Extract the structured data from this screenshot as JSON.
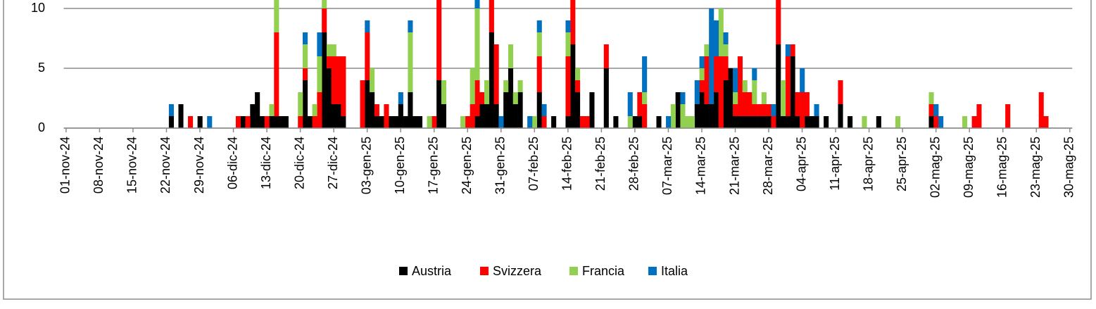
{
  "chart_data": {
    "type": "stacked_bar",
    "categories": [
      "01-nov-24",
      null,
      null,
      null,
      null,
      null,
      null,
      "08-nov-24",
      null,
      null,
      null,
      null,
      null,
      null,
      "15-nov-24",
      null,
      null,
      null,
      null,
      null,
      null,
      "22-nov-24",
      null,
      null,
      null,
      null,
      null,
      null,
      "29-nov-24",
      null,
      null,
      null,
      null,
      null,
      null,
      "06-dic-24",
      null,
      null,
      null,
      null,
      null,
      null,
      "13-dic-24",
      null,
      null,
      null,
      null,
      null,
      null,
      "20-dic-24",
      null,
      null,
      null,
      null,
      null,
      null,
      "27-dic-24",
      null,
      null,
      null,
      null,
      null,
      null,
      "03-gen-25",
      null,
      null,
      null,
      null,
      null,
      null,
      "10-gen-25",
      null,
      null,
      null,
      null,
      null,
      null,
      "17-gen-25",
      null,
      null,
      null,
      null,
      null,
      null,
      "24-gen-25",
      null,
      null,
      null,
      null,
      null,
      null,
      "31-gen-25",
      null,
      null,
      null,
      null,
      null,
      null,
      "07-feb-25",
      null,
      null,
      null,
      null,
      null,
      null,
      "14-feb-25",
      null,
      null,
      null,
      null,
      null,
      null,
      "21-feb-25",
      null,
      null,
      null,
      null,
      null,
      null,
      "28-feb-25",
      null,
      null,
      null,
      null,
      null,
      null,
      "07-mar-25",
      null,
      null,
      null,
      null,
      null,
      null,
      "14-mar-25",
      null,
      null,
      null,
      null,
      null,
      null,
      "21-mar-25",
      null,
      null,
      null,
      null,
      null,
      null,
      "28-mar-25",
      null,
      null,
      null,
      null,
      null,
      null,
      "04-apr-25",
      null,
      null,
      null,
      null,
      null,
      null,
      "11-apr-25",
      null,
      null,
      null,
      null,
      null,
      null,
      "18-apr-25",
      null,
      null,
      null,
      null,
      null,
      null,
      "25-apr-25",
      null,
      null,
      null,
      null,
      null,
      null,
      "02-mag-25",
      null,
      null,
      null,
      null,
      null,
      null,
      "09-mag-25",
      null,
      null,
      null,
      null,
      null,
      null,
      "16-mag-25",
      null,
      null,
      null,
      null,
      null,
      null,
      "23-mag-25",
      null,
      null,
      null,
      null,
      null,
      null,
      "30-mag-25"
    ],
    "series": [
      {
        "name": "Austria",
        "color": "#000000",
        "values": [
          0,
          0,
          0,
          0,
          0,
          0,
          0,
          0,
          0,
          0,
          0,
          0,
          0,
          0,
          0,
          0,
          0,
          0,
          0,
          0,
          0,
          0,
          1,
          0,
          2,
          0,
          0,
          0,
          1,
          0,
          0,
          0,
          0,
          0,
          0,
          0,
          0,
          1,
          0,
          2,
          3,
          1,
          0,
          1,
          1,
          1,
          1,
          0,
          0,
          0,
          4,
          1,
          0,
          0,
          8,
          5,
          2,
          2,
          1,
          0,
          0,
          0,
          0,
          4,
          3,
          1,
          1,
          0,
          1,
          1,
          2,
          1,
          3,
          1,
          1,
          0,
          0,
          0,
          4,
          2,
          0,
          0,
          0,
          0,
          0,
          0,
          1,
          2,
          2,
          8,
          2,
          0,
          3,
          5,
          2,
          3,
          0,
          0,
          0,
          3,
          0,
          0,
          1,
          0,
          0,
          1,
          7,
          3,
          0,
          0,
          3,
          0,
          0,
          5,
          0,
          1,
          0,
          0,
          0,
          1,
          1,
          0,
          0,
          0,
          1,
          0,
          0,
          0,
          3,
          0,
          0,
          0,
          2,
          3,
          2,
          2,
          3,
          0,
          4,
          5,
          1,
          1,
          1,
          1,
          1,
          1,
          1,
          1,
          0,
          7,
          1,
          1,
          6,
          1,
          0,
          1,
          1,
          1,
          0,
          1,
          0,
          0,
          2,
          0,
          1,
          0,
          0,
          0,
          0,
          0,
          1,
          0,
          0,
          0,
          0,
          0,
          0,
          0,
          0,
          0,
          0,
          1,
          0,
          0,
          0,
          0,
          0,
          0,
          0,
          0,
          0,
          0,
          0,
          0,
          0,
          0,
          0,
          0,
          0,
          0,
          0,
          0,
          0,
          0,
          0,
          0,
          0,
          0,
          0,
          0,
          0
        ]
      },
      {
        "name": "Svizzera",
        "color": "#ff0000",
        "values": [
          0,
          0,
          0,
          0,
          0,
          0,
          0,
          0,
          0,
          0,
          0,
          0,
          0,
          0,
          0,
          0,
          0,
          0,
          0,
          0,
          0,
          0,
          0,
          0,
          0,
          0,
          1,
          0,
          0,
          0,
          0,
          0,
          0,
          0,
          0,
          0,
          1,
          0,
          1,
          0,
          0,
          0,
          1,
          0,
          7,
          0,
          0,
          0,
          0,
          1,
          1,
          0,
          1,
          3,
          2,
          1,
          4,
          4,
          5,
          0,
          0,
          0,
          4,
          4,
          0,
          1,
          0,
          2,
          0,
          0,
          0,
          0,
          0,
          0,
          0,
          0,
          0,
          1,
          8,
          0,
          0,
          0,
          0,
          0,
          1,
          2,
          3,
          1,
          0,
          4,
          5,
          0,
          0,
          0,
          0,
          0,
          0,
          0,
          0,
          3,
          1,
          0,
          0,
          0,
          0,
          5,
          4,
          1,
          1,
          1,
          0,
          0,
          0,
          2,
          0,
          0,
          0,
          0,
          0,
          0,
          2,
          2,
          0,
          0,
          0,
          0,
          0,
          0,
          0,
          0,
          0,
          0,
          0,
          1,
          4,
          0,
          3,
          6,
          2,
          0,
          1,
          5,
          2,
          2,
          1,
          1,
          1,
          1,
          1,
          5,
          0,
          5,
          1,
          2,
          3,
          2,
          0,
          0,
          0,
          0,
          0,
          0,
          2,
          0,
          0,
          0,
          0,
          0,
          0,
          0,
          0,
          0,
          0,
          0,
          0,
          0,
          0,
          0,
          0,
          0,
          0,
          1,
          1,
          0,
          0,
          0,
          0,
          0,
          0,
          0,
          1,
          2,
          0,
          0,
          0,
          0,
          0,
          2,
          0,
          0,
          0,
          0,
          0,
          0,
          3,
          1,
          0,
          0,
          0,
          0,
          0
        ]
      },
      {
        "name": "Francia",
        "color": "#92d050",
        "values": [
          0,
          0,
          0,
          0,
          0,
          0,
          0,
          0,
          0,
          0,
          0,
          0,
          0,
          0,
          0,
          0,
          0,
          0,
          0,
          0,
          0,
          0,
          0,
          0,
          0,
          0,
          0,
          0,
          0,
          0,
          0,
          0,
          0,
          0,
          0,
          0,
          0,
          0,
          0,
          0,
          0,
          0,
          0,
          1,
          4,
          0,
          0,
          0,
          0,
          2,
          2,
          0,
          1,
          3,
          2,
          1,
          1,
          0,
          0,
          0,
          0,
          0,
          0,
          0,
          2,
          0,
          0,
          0,
          0,
          0,
          0,
          0,
          5,
          0,
          0,
          0,
          1,
          0,
          0,
          2,
          0,
          0,
          0,
          1,
          0,
          3,
          6,
          0,
          2,
          0,
          0,
          0,
          1,
          2,
          1,
          1,
          0,
          0,
          1,
          2,
          0,
          0,
          0,
          0,
          0,
          2,
          0,
          1,
          0,
          0,
          0,
          0,
          0,
          0,
          0,
          0,
          0,
          0,
          1,
          0,
          0,
          1,
          0,
          0,
          0,
          0,
          0,
          2,
          0,
          2,
          1,
          1,
          0,
          1,
          1,
          0,
          0,
          4,
          1,
          0,
          1,
          0,
          1,
          0,
          2,
          0,
          1,
          0,
          0,
          0,
          3,
          0,
          0,
          0,
          0,
          0,
          0,
          0,
          0,
          0,
          0,
          0,
          0,
          0,
          0,
          0,
          0,
          1,
          0,
          0,
          0,
          0,
          0,
          0,
          1,
          0,
          0,
          0,
          0,
          0,
          0,
          1,
          0,
          0,
          0,
          0,
          0,
          0,
          1,
          0,
          0,
          0,
          0,
          0,
          0,
          0,
          0,
          0,
          0,
          0,
          0,
          0,
          0,
          0,
          0,
          0,
          0,
          0,
          0,
          0,
          0
        ]
      },
      {
        "name": "Italia",
        "color": "#0070c0",
        "values": [
          0,
          0,
          0,
          0,
          0,
          0,
          0,
          0,
          0,
          0,
          0,
          0,
          0,
          0,
          0,
          0,
          0,
          0,
          0,
          0,
          0,
          0,
          1,
          0,
          0,
          0,
          0,
          0,
          0,
          0,
          1,
          0,
          0,
          0,
          0,
          0,
          0,
          0,
          0,
          0,
          0,
          0,
          0,
          0,
          0,
          0,
          0,
          0,
          0,
          0,
          1,
          0,
          0,
          2,
          0,
          0,
          0,
          0,
          0,
          0,
          0,
          0,
          0,
          1,
          0,
          0,
          0,
          0,
          0,
          0,
          1,
          0,
          1,
          0,
          0,
          0,
          0,
          0,
          0,
          0,
          0,
          0,
          0,
          0,
          0,
          0,
          2,
          0,
          0,
          0,
          0,
          1,
          0,
          0,
          0,
          0,
          0,
          1,
          0,
          1,
          1,
          0,
          0,
          0,
          0,
          1,
          0,
          0,
          0,
          0,
          0,
          0,
          0,
          0,
          0,
          0,
          0,
          0,
          2,
          0,
          0,
          3,
          0,
          0,
          0,
          0,
          1,
          0,
          0,
          1,
          0,
          0,
          2,
          1,
          0,
          8,
          3,
          0,
          1,
          0,
          2,
          0,
          0,
          0,
          1,
          0,
          0,
          0,
          1,
          0,
          0,
          1,
          0,
          0,
          2,
          0,
          0,
          1,
          0,
          0,
          0,
          0,
          0,
          0,
          0,
          0,
          0,
          0,
          0,
          0,
          0,
          0,
          0,
          0,
          0,
          0,
          0,
          0,
          0,
          0,
          0,
          0,
          1,
          1,
          0,
          0,
          0,
          0,
          0,
          0,
          0,
          0,
          0,
          0,
          0,
          0,
          0,
          0,
          0,
          0,
          0,
          0,
          0,
          0,
          0,
          0,
          0,
          0,
          0,
          0,
          0
        ]
      }
    ],
    "ylim": [
      0,
      10
    ],
    "yticks": [
      0,
      5,
      10
    ],
    "grid": true,
    "legend": "bottom"
  }
}
